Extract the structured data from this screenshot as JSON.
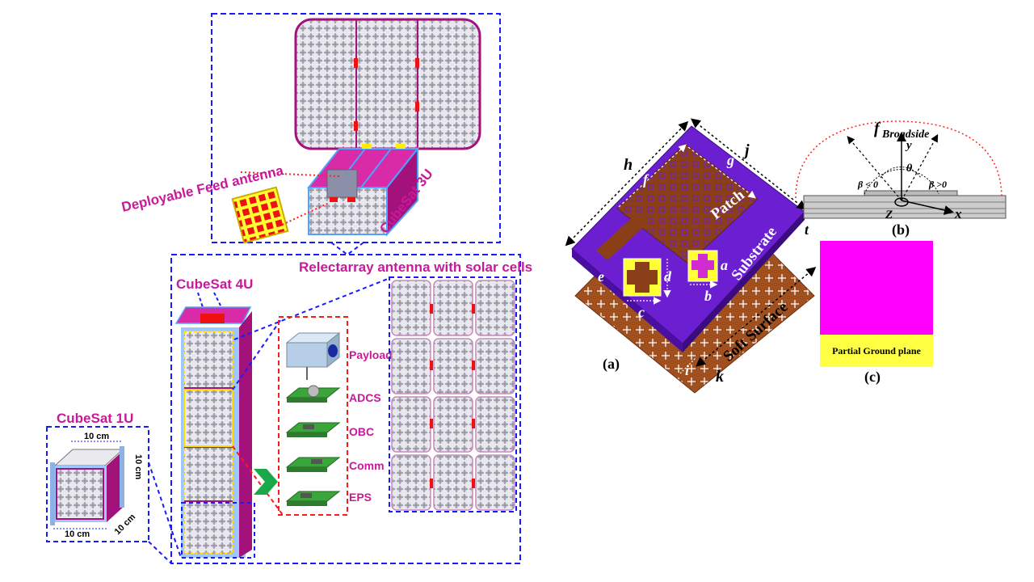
{
  "colors": {
    "magenta": "#c8199a",
    "dash_blue": "#1a1aff",
    "dash_red": "#ff1a1a",
    "sat_magenta": "#a3127a",
    "sat_light": "#9ec7ff",
    "cell_grid": "#8e8e8e",
    "substrate": "#6b1fd1",
    "patch": "#8b3f18",
    "ground": "#a0501e",
    "yellow": "#ffff33",
    "pcb_green": "#3aa63a",
    "dotted_red": "#ff2222"
  },
  "left_figure": {
    "cubesat_3u": {
      "label": "CubeSat 3U",
      "feed_label": "Deployable Feed antenna"
    },
    "reflectarray_label": "Relectarray antenna with solar cells",
    "cubesat_4u": {
      "label": "CubeSat 4U",
      "modules": [
        "Payload",
        "ADCS",
        "OBC",
        "Comm",
        "EPS"
      ]
    },
    "cubesat_1u": {
      "label": "CubeSat 1U",
      "dims": [
        "10 cm",
        "10 cm",
        "10 cm",
        "10 cm"
      ]
    }
  },
  "right_figure": {
    "panel_a": {
      "caption": "(a)",
      "patch_label": "Patch",
      "substrate_label": "Substrate",
      "soft_label": "Soft Surface",
      "dims": [
        "h",
        "j",
        "f",
        "g",
        "a",
        "b",
        "c",
        "d",
        "e",
        "t",
        "i",
        "k"
      ]
    },
    "panel_b": {
      "caption": "(b)",
      "f": "f",
      "broadside": "Broadside",
      "y": "y",
      "x": "x",
      "z": "Z",
      "theta": "θ",
      "beta_neg": "β < 0",
      "beta_pos": "β >0"
    },
    "panel_c": {
      "caption": "(c)",
      "ground_label": "Partial Ground plane"
    }
  }
}
